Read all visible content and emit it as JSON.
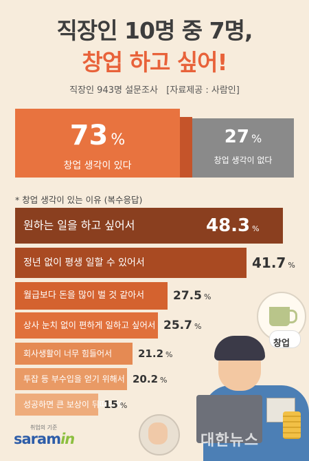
{
  "title": {
    "line1": "직장인 10명 중 7명,",
    "line2": "창업 하고 싶어!"
  },
  "survey": "직장인 943명 설문조사   [자료제공 : 사람인]",
  "summary": {
    "yes": {
      "value": "73",
      "unit": "%",
      "label": "창업 생각이 있다"
    },
    "no": {
      "value": "27",
      "unit": "%",
      "label": "창업 생각이 없다"
    }
  },
  "section_title": "* 창업 생각이 있는 이유 (복수응답)",
  "chart_data": {
    "type": "bar",
    "orientation": "horizontal",
    "unit": "%",
    "categories": [
      "원하는 일을 하고 싶어서",
      "정년 없이 평생 일할 수 있어서",
      "월급보다 돈을 많이 벌 것 같아서",
      "상사 눈치 없이 편하게 일하고 싶어서",
      "회사생활이 너무 힘들어서",
      "투잡 등 부수입을 얻기 위해서",
      "성공하면 큰 보상이 뒤따라서"
    ],
    "values": [
      48.3,
      41.7,
      27.5,
      25.7,
      21.2,
      20.2,
      15
    ],
    "value_labels": [
      "48.3",
      "41.7",
      "27.5",
      "25.7",
      "21.2",
      "20.2",
      "15"
    ],
    "colors": [
      "#8a3f1f",
      "#a94a22",
      "#d4622f",
      "#e0703b",
      "#e58a53",
      "#e99a65",
      "#eeac7c"
    ]
  },
  "decor": {
    "bubble_label": "창업",
    "logo_small": "취업의 기준",
    "logo_main": "saram",
    "logo_suffix": "in",
    "watermark": "대한뉴스"
  }
}
